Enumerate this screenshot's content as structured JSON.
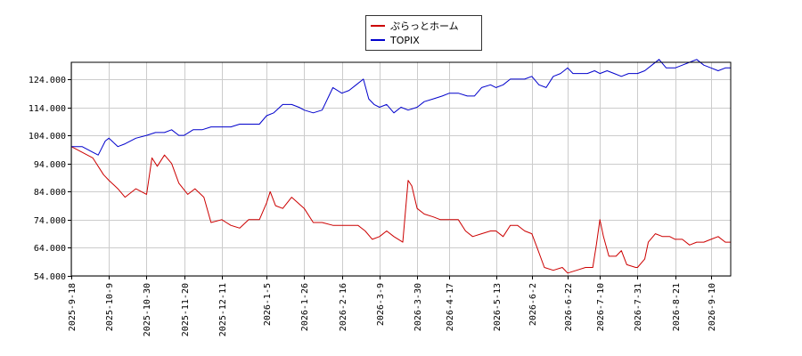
{
  "chart_data": {
    "type": "line",
    "title": "",
    "xlabel": "",
    "ylabel": "",
    "ylim": [
      54,
      130
    ],
    "yticks": [
      54,
      64,
      74,
      84,
      94,
      104,
      114,
      124
    ],
    "ytick_labels": [
      "54.000",
      "64.000",
      "74.000",
      "84.000",
      "94.000",
      "104.000",
      "114.000",
      "124.000"
    ],
    "xlim": [
      "2025-09-18",
      "2026-09-21"
    ],
    "xticks": [
      "2025-9-18",
      "2025-10-9",
      "2025-10-30",
      "2025-11-20",
      "2025-12-11",
      "2026-1-5",
      "2026-1-26",
      "2026-2-16",
      "2026-3-9",
      "2026-3-30",
      "2026-4-17",
      "2026-5-13",
      "2026-6-2",
      "2026-6-22",
      "2026-7-10",
      "2026-7-31",
      "2026-8-21",
      "2026-9-10"
    ],
    "grid": true,
    "legend_position": "top-center",
    "series": [
      {
        "name": "ぷらっとホーム",
        "color": "#cc0000",
        "points": [
          [
            "2025-09-18",
            100
          ],
          [
            "2025-09-24",
            98
          ],
          [
            "2025-09-30",
            96
          ],
          [
            "2025-10-06",
            90
          ],
          [
            "2025-10-09",
            88
          ],
          [
            "2025-10-14",
            85
          ],
          [
            "2025-10-18",
            82
          ],
          [
            "2025-10-24",
            85
          ],
          [
            "2025-10-30",
            83
          ],
          [
            "2025-11-02",
            96
          ],
          [
            "2025-11-05",
            93
          ],
          [
            "2025-11-09",
            97
          ],
          [
            "2025-11-13",
            94
          ],
          [
            "2025-11-17",
            87
          ],
          [
            "2025-11-22",
            83
          ],
          [
            "2025-11-26",
            85
          ],
          [
            "2025-12-01",
            82
          ],
          [
            "2025-12-05",
            73
          ],
          [
            "2025-12-11",
            74
          ],
          [
            "2025-12-16",
            72
          ],
          [
            "2025-12-21",
            71
          ],
          [
            "2025-12-26",
            74
          ],
          [
            "2026-01-01",
            74
          ],
          [
            "2026-01-05",
            80
          ],
          [
            "2026-01-07",
            84
          ],
          [
            "2026-01-10",
            79
          ],
          [
            "2026-01-14",
            78
          ],
          [
            "2026-01-19",
            82
          ],
          [
            "2026-01-26",
            78
          ],
          [
            "2026-01-31",
            73
          ],
          [
            "2026-02-05",
            73
          ],
          [
            "2026-02-11",
            72
          ],
          [
            "2026-02-16",
            72
          ],
          [
            "2026-02-20",
            72
          ],
          [
            "2026-02-25",
            72
          ],
          [
            "2026-03-01",
            70
          ],
          [
            "2026-03-05",
            67
          ],
          [
            "2026-03-09",
            68
          ],
          [
            "2026-03-13",
            70
          ],
          [
            "2026-03-17",
            68
          ],
          [
            "2026-03-22",
            66
          ],
          [
            "2026-03-25",
            88
          ],
          [
            "2026-03-27",
            86
          ],
          [
            "2026-03-30",
            78
          ],
          [
            "2026-04-03",
            76
          ],
          [
            "2026-04-08",
            75
          ],
          [
            "2026-04-12",
            74
          ],
          [
            "2026-04-17",
            74
          ],
          [
            "2026-04-22",
            74
          ],
          [
            "2026-04-26",
            70
          ],
          [
            "2026-04-30",
            68
          ],
          [
            "2026-05-05",
            69
          ],
          [
            "2026-05-10",
            70
          ],
          [
            "2026-05-13",
            70
          ],
          [
            "2026-05-17",
            68
          ],
          [
            "2026-05-21",
            72
          ],
          [
            "2026-05-25",
            72
          ],
          [
            "2026-05-29",
            70
          ],
          [
            "2026-06-02",
            69
          ],
          [
            "2026-06-05",
            64
          ],
          [
            "2026-06-09",
            57
          ],
          [
            "2026-06-14",
            56
          ],
          [
            "2026-06-19",
            57
          ],
          [
            "2026-06-22",
            55
          ],
          [
            "2026-06-27",
            56
          ],
          [
            "2026-07-02",
            57
          ],
          [
            "2026-07-06",
            57
          ],
          [
            "2026-07-08",
            65
          ],
          [
            "2026-07-10",
            74
          ],
          [
            "2026-07-12",
            68
          ],
          [
            "2026-07-15",
            61
          ],
          [
            "2026-07-19",
            61
          ],
          [
            "2026-07-22",
            63
          ],
          [
            "2026-07-25",
            58
          ],
          [
            "2026-07-30",
            57
          ],
          [
            "2026-07-31",
            57
          ],
          [
            "2026-08-04",
            60
          ],
          [
            "2026-08-06",
            66
          ],
          [
            "2026-08-10",
            69
          ],
          [
            "2026-08-14",
            68
          ],
          [
            "2026-08-18",
            68
          ],
          [
            "2026-08-21",
            67
          ],
          [
            "2026-08-25",
            67
          ],
          [
            "2026-08-29",
            65
          ],
          [
            "2026-09-02",
            66
          ],
          [
            "2026-09-06",
            66
          ],
          [
            "2026-09-10",
            67
          ],
          [
            "2026-09-14",
            68
          ],
          [
            "2026-09-18",
            66
          ],
          [
            "2026-09-21",
            66
          ]
        ]
      },
      {
        "name": "TOPIX",
        "color": "#0000cc",
        "points": [
          [
            "2025-09-18",
            100
          ],
          [
            "2025-09-24",
            100
          ],
          [
            "2025-09-30",
            98
          ],
          [
            "2025-10-03",
            97
          ],
          [
            "2025-10-07",
            102
          ],
          [
            "2025-10-09",
            103
          ],
          [
            "2025-10-14",
            100
          ],
          [
            "2025-10-18",
            101
          ],
          [
            "2025-10-24",
            103
          ],
          [
            "2025-10-30",
            104
          ],
          [
            "2025-11-04",
            105
          ],
          [
            "2025-11-09",
            105
          ],
          [
            "2025-11-13",
            106
          ],
          [
            "2025-11-17",
            104
          ],
          [
            "2025-11-20",
            104
          ],
          [
            "2025-11-25",
            106
          ],
          [
            "2025-11-30",
            106
          ],
          [
            "2025-12-05",
            107
          ],
          [
            "2025-12-11",
            107
          ],
          [
            "2025-12-16",
            107
          ],
          [
            "2025-12-21",
            108
          ],
          [
            "2025-12-26",
            108
          ],
          [
            "2026-01-01",
            108
          ],
          [
            "2026-01-05",
            111
          ],
          [
            "2026-01-09",
            112
          ],
          [
            "2026-01-14",
            115
          ],
          [
            "2026-01-19",
            115
          ],
          [
            "2026-01-23",
            114
          ],
          [
            "2026-01-26",
            113
          ],
          [
            "2026-01-31",
            112
          ],
          [
            "2026-02-05",
            113
          ],
          [
            "2026-02-11",
            121
          ],
          [
            "2026-02-16",
            119
          ],
          [
            "2026-02-20",
            120
          ],
          [
            "2026-02-24",
            122
          ],
          [
            "2026-02-28",
            124
          ],
          [
            "2026-03-03",
            117
          ],
          [
            "2026-03-06",
            115
          ],
          [
            "2026-03-09",
            114
          ],
          [
            "2026-03-13",
            115
          ],
          [
            "2026-03-17",
            112
          ],
          [
            "2026-03-21",
            114
          ],
          [
            "2026-03-25",
            113
          ],
          [
            "2026-03-30",
            114
          ],
          [
            "2026-04-03",
            116
          ],
          [
            "2026-04-08",
            117
          ],
          [
            "2026-04-13",
            118
          ],
          [
            "2026-04-17",
            119
          ],
          [
            "2026-04-22",
            119
          ],
          [
            "2026-04-27",
            118
          ],
          [
            "2026-05-01",
            118
          ],
          [
            "2026-05-05",
            121
          ],
          [
            "2026-05-10",
            122
          ],
          [
            "2026-05-13",
            121
          ],
          [
            "2026-05-17",
            122
          ],
          [
            "2026-05-21",
            124
          ],
          [
            "2026-05-25",
            124
          ],
          [
            "2026-05-29",
            124
          ],
          [
            "2026-06-02",
            125
          ],
          [
            "2026-06-06",
            122
          ],
          [
            "2026-06-10",
            121
          ],
          [
            "2026-06-14",
            125
          ],
          [
            "2026-06-18",
            126
          ],
          [
            "2026-06-22",
            128
          ],
          [
            "2026-06-25",
            126
          ],
          [
            "2026-06-29",
            126
          ],
          [
            "2026-07-03",
            126
          ],
          [
            "2026-07-07",
            127
          ],
          [
            "2026-07-10",
            126
          ],
          [
            "2026-07-14",
            127
          ],
          [
            "2026-07-18",
            126
          ],
          [
            "2026-07-22",
            125
          ],
          [
            "2026-07-26",
            126
          ],
          [
            "2026-07-31",
            126
          ],
          [
            "2026-08-04",
            127
          ],
          [
            "2026-08-08",
            129
          ],
          [
            "2026-08-12",
            131
          ],
          [
            "2026-08-16",
            128
          ],
          [
            "2026-08-21",
            128
          ],
          [
            "2026-08-25",
            129
          ],
          [
            "2026-08-29",
            130
          ],
          [
            "2026-09-02",
            131
          ],
          [
            "2026-09-06",
            129
          ],
          [
            "2026-09-10",
            128
          ],
          [
            "2026-09-14",
            127
          ],
          [
            "2026-09-18",
            128
          ],
          [
            "2026-09-21",
            128
          ]
        ]
      }
    ]
  }
}
